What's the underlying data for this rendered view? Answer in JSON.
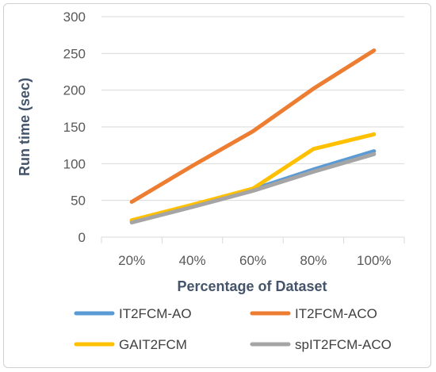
{
  "chart_data": {
    "type": "line",
    "categories": [
      "20%",
      "40%",
      "60%",
      "80%",
      "100%"
    ],
    "series": [
      {
        "name": "IT2FCM-AO",
        "values": [
          22,
          43,
          65,
          92,
          117
        ],
        "color": "#5b9bd5"
      },
      {
        "name": "IT2FCM-ACO",
        "values": [
          48,
          97,
          144,
          202,
          254
        ],
        "color": "#ed7d31"
      },
      {
        "name": "GAIT2FCM",
        "values": [
          23,
          44,
          66,
          120,
          140
        ],
        "color": "#ffc000"
      },
      {
        "name": "spIT2FCM-ACO",
        "values": [
          20,
          41,
          63,
          89,
          113
        ],
        "color": "#a5a5a5"
      }
    ],
    "y_ticks": [
      "0",
      "50",
      "100",
      "150",
      "200",
      "250",
      "300"
    ],
    "title": "",
    "xlabel": "Percentage of Dataset",
    "ylabel": "Run time (sec)",
    "ylim": [
      0,
      300
    ],
    "grid": "horizontal",
    "legend_position": "bottom"
  }
}
